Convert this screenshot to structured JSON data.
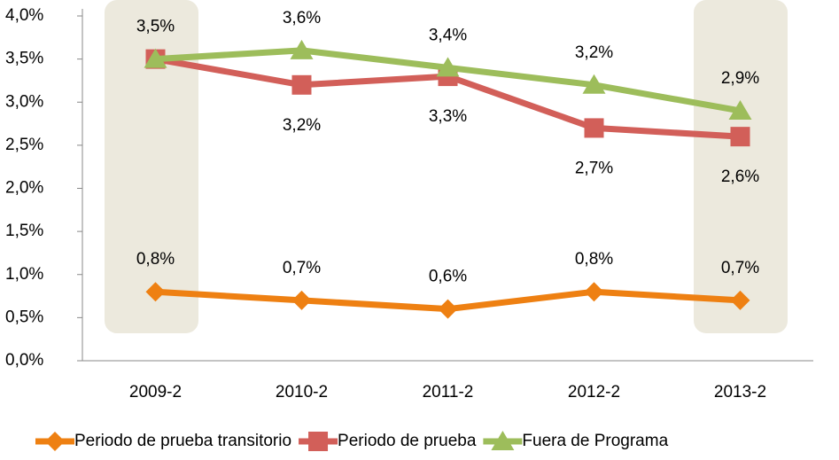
{
  "chart_data": {
    "type": "line",
    "categories": [
      "2009-2",
      "2010-2",
      "2011-2",
      "2012-2",
      "2013-2"
    ],
    "series": [
      {
        "name": "Periodo de prueba transitorio",
        "color": "#ee8012",
        "marker": "diamond",
        "values": [
          0.8,
          0.7,
          0.6,
          0.8,
          0.7
        ],
        "value_labels": [
          "0,8%",
          "0,7%",
          "0,6%",
          "0,8%",
          "0,7%"
        ],
        "label_position": "above"
      },
      {
        "name": "Periodo de prueba",
        "color": "#d25f59",
        "marker": "square",
        "values": [
          3.5,
          3.2,
          3.3,
          2.7,
          2.6
        ],
        "value_labels": [
          null,
          "3,2%",
          "3,3%",
          "2,7%",
          "2,6%"
        ],
        "label_position": "below"
      },
      {
        "name": "Fuera de Programa",
        "color": "#9dbd5b",
        "marker": "triangle",
        "values": [
          3.5,
          3.6,
          3.4,
          3.2,
          2.9
        ],
        "value_labels": [
          "3,5%",
          "3,6%",
          "3,4%",
          "3,2%",
          "2,9%"
        ],
        "label_position": "above"
      }
    ],
    "ylim": [
      0,
      4
    ],
    "yticks": [
      {
        "value": 0,
        "label": "0,0%"
      },
      {
        "value": 0.5,
        "label": "0,5%"
      },
      {
        "value": 1,
        "label": "1,0%"
      },
      {
        "value": 1.5,
        "label": "1,5%"
      },
      {
        "value": 2,
        "label": "2,0%"
      },
      {
        "value": 2.5,
        "label": "2,5%"
      },
      {
        "value": 3,
        "label": "3,0%"
      },
      {
        "value": 3.5,
        "label": "3,5%"
      },
      {
        "value": 4,
        "label": "4,0%"
      }
    ],
    "legend": "bottom"
  }
}
